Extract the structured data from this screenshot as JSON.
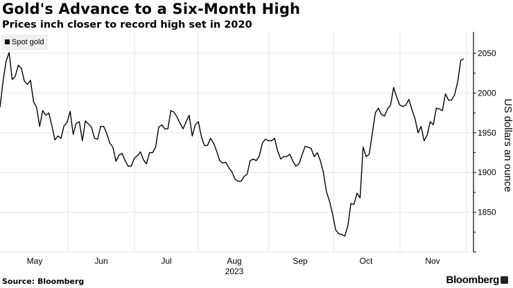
{
  "header": {
    "title": "Gold's Advance to a Six-Month High",
    "subtitle": "Prices inch closer to record high set in 2020"
  },
  "legend": {
    "label": "Spot gold"
  },
  "footer": {
    "source": "Source: Bloomberg",
    "brand": "Bloomberg"
  },
  "colors": {
    "line": "#000000",
    "grid": "#e6e6e6",
    "legend_bg": "#efefef"
  },
  "chart_data": {
    "type": "line",
    "title": "Gold's Advance to a Six-Month High",
    "subtitle": "Prices inch closer to record high set in 2020",
    "xlabel": "2023",
    "ylabel": "US dollars an ounce",
    "ylim": [
      1808,
      2072
    ],
    "yticks": [
      1850,
      1900,
      1950,
      2000,
      2050
    ],
    "xticks": [
      "May",
      "Jun",
      "Jul",
      "Aug",
      "Sep",
      "Oct",
      "Nov"
    ],
    "x_year_label": "2023",
    "legend": [
      "Spot gold"
    ],
    "legend_position": "top-left",
    "grid": true,
    "series": [
      {
        "name": "Spot gold",
        "values": [
          1982,
          2015,
          2040,
          2051,
          2017,
          2021,
          2035,
          2031,
          2015,
          2011,
          2016,
          1989,
          1982,
          1958,
          1978,
          1972,
          1975,
          1959,
          1941,
          1946,
          1943,
          1959,
          1963,
          1977,
          1948,
          1962,
          1964,
          1940,
          1965,
          1961,
          1957,
          1943,
          1942,
          1958,
          1958,
          1949,
          1937,
          1932,
          1914,
          1922,
          1924,
          1915,
          1908,
          1908,
          1918,
          1921,
          1926,
          1916,
          1911,
          1925,
          1925,
          1932,
          1957,
          1960,
          1955,
          1955,
          1978,
          1976,
          1970,
          1962,
          1955,
          1964,
          1972,
          1946,
          1960,
          1964,
          1945,
          1934,
          1934,
          1943,
          1937,
          1927,
          1915,
          1912,
          1913,
          1906,
          1901,
          1892,
          1889,
          1889,
          1895,
          1898,
          1915,
          1917,
          1915,
          1921,
          1937,
          1942,
          1940,
          1940,
          1943,
          1927,
          1917,
          1920,
          1920,
          1923,
          1914,
          1908,
          1911,
          1922,
          1933,
          1932,
          1930,
          1920,
          1925,
          1915,
          1900,
          1876,
          1864,
          1848,
          1828,
          1823,
          1822,
          1820,
          1833,
          1861,
          1860,
          1874,
          1868,
          1932,
          1920,
          1923,
          1949,
          1975,
          1981,
          1973,
          1971,
          1980,
          1985,
          2007,
          1995,
          1985,
          1983,
          1985,
          1992,
          1979,
          1968,
          1950,
          1958,
          1940,
          1947,
          1964,
          1960,
          1981,
          1980,
          1978,
          1999,
          1991,
          1991,
          1998,
          2014,
          2041,
          2043
        ]
      }
    ]
  }
}
